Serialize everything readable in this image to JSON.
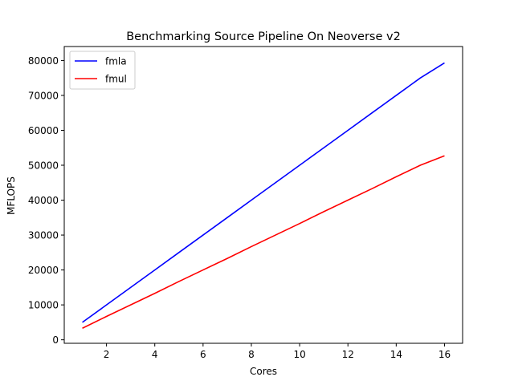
{
  "chart_data": {
    "type": "line",
    "title": "Benchmarking Source Pipeline On Neoverse v2",
    "xlabel": "Cores",
    "ylabel": "MFLOPS",
    "xlim": [
      0.25,
      16.75
    ],
    "ylim": [
      -1000,
      84000
    ],
    "xticks": [
      2,
      4,
      6,
      8,
      10,
      12,
      14,
      16
    ],
    "yticks": [
      0,
      10000,
      20000,
      30000,
      40000,
      50000,
      60000,
      70000,
      80000
    ],
    "grid": false,
    "legend_position": "top-left",
    "x": [
      1,
      2,
      3,
      4,
      5,
      6,
      7,
      8,
      9,
      10,
      11,
      12,
      13,
      14,
      15,
      16
    ],
    "series": [
      {
        "name": "fmla",
        "color": "#0000ff",
        "values": [
          5000,
          10000,
          15000,
          20000,
          25000,
          30000,
          35000,
          40000,
          45000,
          50000,
          55000,
          60000,
          65000,
          70000,
          75000,
          79300
        ]
      },
      {
        "name": "fmul",
        "color": "#ff0000",
        "values": [
          3300,
          6700,
          10000,
          13300,
          16700,
          20000,
          23300,
          26700,
          30000,
          33300,
          36700,
          40000,
          43300,
          46700,
          50000,
          52700
        ]
      }
    ]
  }
}
